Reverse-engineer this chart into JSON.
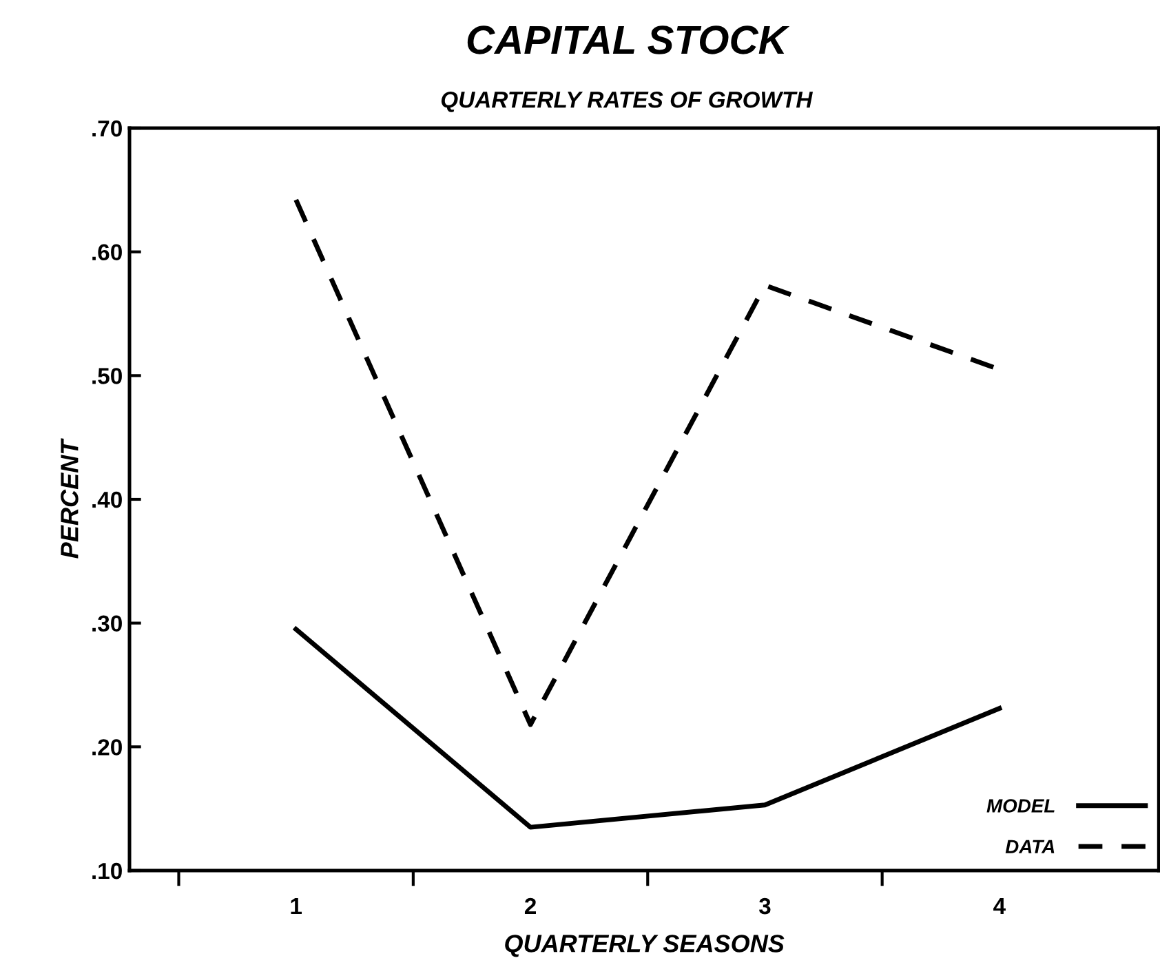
{
  "chart_data": {
    "type": "line",
    "title": "CAPITAL STOCK",
    "subtitle": "QUARTERLY RATES OF GROWTH",
    "xlabel": "QUARTERLY SEASONS",
    "ylabel": "PERCENT",
    "x": [
      1,
      2,
      3,
      4
    ],
    "xlim": [
      0.29,
      4.68
    ],
    "xticks": [
      {
        "value": 0.5,
        "label": null
      },
      1,
      {
        "value": 1.5,
        "label": null
      },
      2,
      {
        "value": 2.5,
        "label": null
      },
      3,
      {
        "value": 3.5,
        "label": null
      },
      4
    ],
    "series": [
      {
        "name": "MODEL",
        "color": "#000000",
        "line_style": "solid",
        "values": [
          0.295,
          0.135,
          0.153,
          0.231
        ]
      },
      {
        "name": "DATA",
        "color": "#000000",
        "line_style": "dashed",
        "values": [
          0.642,
          0.218,
          0.573,
          0.505
        ]
      }
    ],
    "ylim": [
      0.1,
      0.7
    ],
    "yticks": [
      {
        "value": 0.1,
        "label": ".10"
      },
      {
        "value": 0.2,
        "label": ".20"
      },
      {
        "value": 0.3,
        "label": ".30"
      },
      {
        "value": 0.4,
        "label": ".40"
      },
      {
        "value": 0.5,
        "label": ".50"
      },
      {
        "value": 0.6,
        "label": ".60"
      },
      {
        "value": 0.7,
        "label": ".70"
      }
    ],
    "legend": "bottom right",
    "grid": false,
    "marker": "none"
  }
}
